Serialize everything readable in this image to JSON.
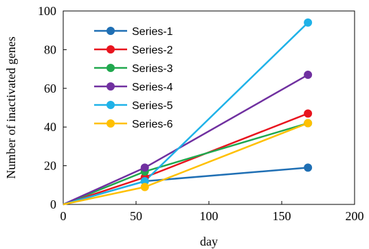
{
  "chart_data": {
    "type": "line",
    "xlabel": "day",
    "ylabel": "Number of inactivated genes",
    "xlim": [
      0,
      200
    ],
    "ylim": [
      0,
      100
    ],
    "xticks": [
      0,
      50,
      100,
      150,
      200
    ],
    "yticks": [
      0,
      20,
      40,
      60,
      80,
      100
    ],
    "grid": false,
    "legend_position": "top-left",
    "x": [
      0,
      56,
      168
    ],
    "series": [
      {
        "name": "Series-1",
        "color": "#1f6fb4",
        "values": [
          0,
          12,
          19
        ]
      },
      {
        "name": "Series-2",
        "color": "#e8141e",
        "values": [
          0,
          14,
          47
        ]
      },
      {
        "name": "Series-3",
        "color": "#20a84e",
        "values": [
          0,
          17,
          42
        ]
      },
      {
        "name": "Series-4",
        "color": "#7030a0",
        "values": [
          0,
          19,
          67
        ]
      },
      {
        "name": "Series-5",
        "color": "#1fb2e8",
        "values": [
          0,
          12,
          94
        ]
      },
      {
        "name": "Series-6",
        "color": "#ffc000",
        "values": [
          0,
          9,
          42
        ]
      }
    ]
  }
}
